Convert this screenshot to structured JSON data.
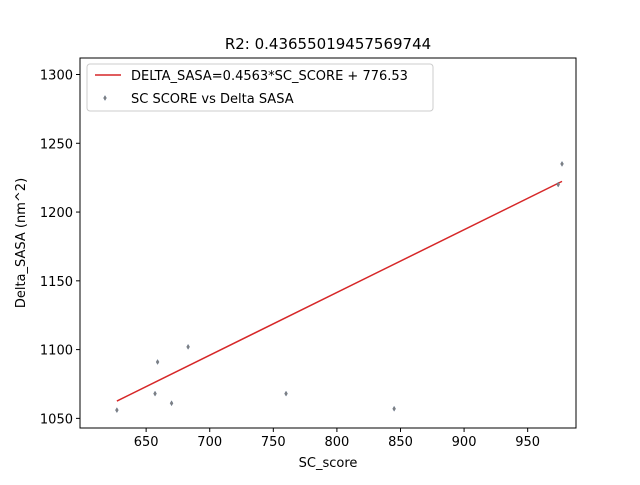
{
  "chart_data": {
    "type": "scatter",
    "title": "R2: 0.43655019457569744",
    "xlabel": "SC_score",
    "ylabel": "Delta_SASA (nm^2)",
    "xlim": [
      598,
      988
    ],
    "ylim": [
      1043,
      1312
    ],
    "xticks": [
      650,
      700,
      750,
      800,
      850,
      900,
      950
    ],
    "yticks": [
      1050,
      1100,
      1150,
      1200,
      1250,
      1300
    ],
    "grid": false,
    "legend_position": "top-left",
    "series": [
      {
        "name": "DELTA_SASA=0.4563*SC_SCORE + 776.53",
        "kind": "line",
        "color": "#d62728",
        "x": [
          627,
          977
        ],
        "y": [
          1062.6,
          1222.3
        ]
      },
      {
        "name": "SC SCORE vs Delta SASA",
        "kind": "scatter",
        "color": "#808080",
        "x": [
          627,
          657,
          659,
          670,
          683,
          760,
          845,
          974,
          977
        ],
        "y": [
          1056,
          1068,
          1091,
          1061,
          1102,
          1068,
          1057,
          1220,
          1235
        ]
      }
    ]
  }
}
